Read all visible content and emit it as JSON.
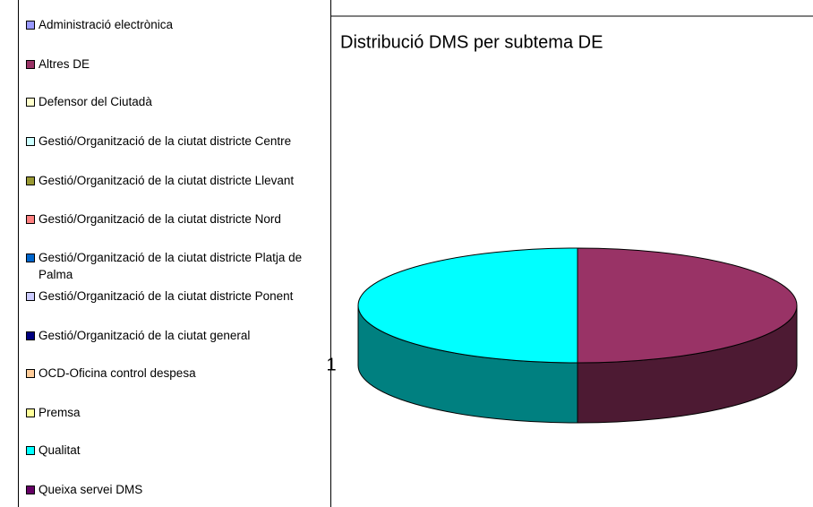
{
  "chart_data": {
    "type": "pie3d",
    "title": "Distribució DMS per subtema DE",
    "categories": [
      "Administració electrònica",
      "Altres DE",
      "Defensor del Ciutadà",
      "Gestió/Organització de la ciutat districte Centre",
      "Gestió/Organització de la ciutat districte Llevant",
      "Gestió/Organització de la ciutat districte Nord",
      "Gestió/Organització de la ciutat districte Platja de Palma",
      "Gestió/Organització de la ciutat districte Ponent",
      "Gestió/Organització de la ciutat general",
      "OCD-Oficina control despesa",
      "Premsa",
      "Qualitat",
      "Queixa servei DMS"
    ],
    "values": [
      0,
      1,
      0,
      0,
      0,
      0,
      0,
      0,
      0,
      0,
      0,
      1,
      0
    ],
    "colors": [
      "#9999ff",
      "#993366",
      "#ffffcc",
      "#ccffff",
      "#999933",
      "#ff8080",
      "#0066cc",
      "#ccccff",
      "#000080",
      "#ffcc99",
      "#ffff99",
      "#00ffff",
      "#660066"
    ]
  }
}
